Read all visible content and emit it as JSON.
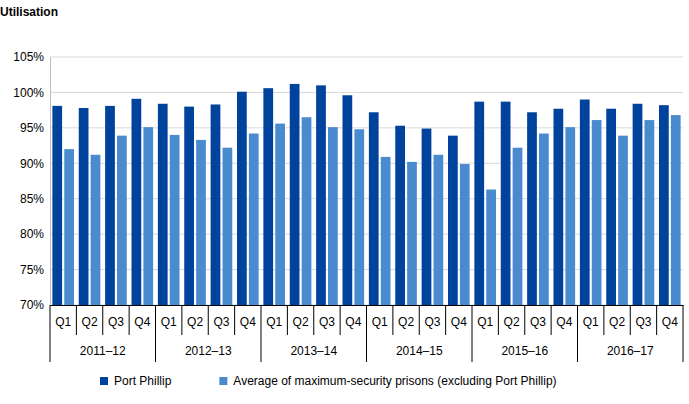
{
  "chart_data": {
    "type": "bar",
    "y_label": "Utilisation",
    "categories": [
      "Q1",
      "Q2",
      "Q3",
      "Q4",
      "Q1",
      "Q2",
      "Q3",
      "Q4",
      "Q1",
      "Q2",
      "Q3",
      "Q4",
      "Q1",
      "Q2",
      "Q3",
      "Q4",
      "Q1",
      "Q2",
      "Q3",
      "Q4",
      "Q1",
      "Q2",
      "Q3",
      "Q4"
    ],
    "groups": [
      "2011–12",
      "2012–13",
      "2013–14",
      "2014–15",
      "2015–16",
      "2016–17"
    ],
    "series": [
      {
        "name": "Port Phillip",
        "color": "#00439c",
        "values": [
          98.1,
          97.8,
          98.1,
          99.1,
          98.4,
          98.0,
          98.3,
          100.1,
          100.6,
          101.2,
          101.0,
          99.6,
          97.2,
          95.3,
          94.9,
          93.9,
          98.7,
          98.7,
          97.2,
          97.7,
          99.0,
          97.7,
          98.4,
          98.2
        ]
      },
      {
        "name": "Average of maximum-security prisons (excluding Port Phillip)",
        "color": "#4a8bcf",
        "values": [
          92.0,
          91.2,
          93.9,
          95.1,
          94.0,
          93.3,
          92.2,
          94.2,
          95.6,
          96.5,
          95.1,
          94.8,
          90.9,
          90.2,
          91.2,
          89.9,
          86.3,
          92.2,
          94.2,
          95.1,
          96.1,
          93.9,
          96.1,
          96.8
        ]
      }
    ],
    "ylim": [
      70,
      105
    ],
    "yticks": [
      {
        "value": 70,
        "label": "70%"
      },
      {
        "value": 75,
        "label": "75%"
      },
      {
        "value": 80,
        "label": "80%"
      },
      {
        "value": 85,
        "label": "85%"
      },
      {
        "value": 90,
        "label": "90%"
      },
      {
        "value": 95,
        "label": "95%"
      },
      {
        "value": 100,
        "label": "100%"
      },
      {
        "value": 105,
        "label": "105%"
      }
    ],
    "grid": true,
    "legend": "bottom"
  }
}
